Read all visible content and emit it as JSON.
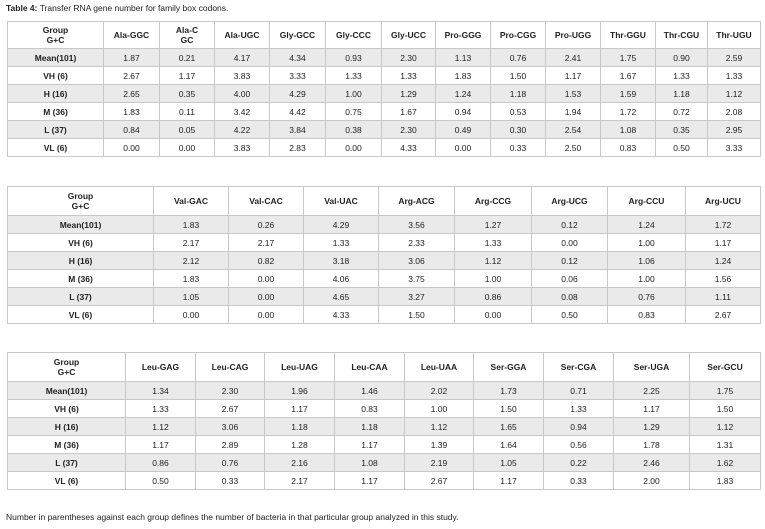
{
  "caption": {
    "label": "Table 4:",
    "text": "Transfer RNA gene number for family box codons."
  },
  "footnote": "Number in parentheses against each group defines the number of bacteria in that particular group analyzed in this study.",
  "table1": {
    "group_header": [
      "Group",
      "G+C"
    ],
    "columns": [
      "Ala-GGC",
      "Ala-CGC",
      "Ala-UGC",
      "Gly-GCC",
      "Gly-CCC",
      "Gly-UCC",
      "Pro-GGG",
      "Pro-CGG",
      "Pro-UGG",
      "Thr-GGU",
      "Thr-CGU",
      "Thr-UGU"
    ],
    "rows": [
      {
        "label": "Mean(101)",
        "values": [
          "1.87",
          "0.21",
          "4.17",
          "4.34",
          "0.93",
          "2.30",
          "1.13",
          "0.76",
          "2.41",
          "1.75",
          "0.90",
          "2.59"
        ]
      },
      {
        "label": "VH (6)",
        "values": [
          "2.67",
          "1.17",
          "3.83",
          "3.33",
          "1.33",
          "1.33",
          "1.83",
          "1.50",
          "1.17",
          "1.67",
          "1.33",
          "1.33"
        ]
      },
      {
        "label": "H (16)",
        "values": [
          "2.65",
          "0.35",
          "4.00",
          "4.29",
          "1.00",
          "1.29",
          "1.24",
          "1.18",
          "1.53",
          "1.59",
          "1.18",
          "1.12"
        ]
      },
      {
        "label": "M (36)",
        "values": [
          "1.83",
          "0.11",
          "3.42",
          "4.42",
          "0.75",
          "1.67",
          "0.94",
          "0.53",
          "1.94",
          "1.72",
          "0.72",
          "2.08"
        ]
      },
      {
        "label": "L (37)",
        "values": [
          "0.84",
          "0.05",
          "4.22",
          "3.84",
          "0.38",
          "2.30",
          "0.49",
          "0.30",
          "2.54",
          "1.08",
          "0.35",
          "2.95"
        ]
      },
      {
        "label": "VL (6)",
        "values": [
          "0.00",
          "0.00",
          "3.83",
          "2.83",
          "0.00",
          "4.33",
          "0.00",
          "0.33",
          "2.50",
          "0.83",
          "0.50",
          "3.33"
        ]
      }
    ]
  },
  "table2": {
    "group_header": [
      "Group",
      "G+C"
    ],
    "columns": [
      "Val-GAC",
      "Val-CAC",
      "Val-UAC",
      "Arg-ACG",
      "Arg-CCG",
      "Arg-UCG",
      "Arg-CCU",
      "Arg-UCU"
    ],
    "rows": [
      {
        "label": "Mean(101)",
        "values": [
          "1.83",
          "0.26",
          "4.29",
          "3.56",
          "1.27",
          "0.12",
          "1.24",
          "1.72"
        ]
      },
      {
        "label": "VH (6)",
        "values": [
          "2.17",
          "2.17",
          "1.33",
          "2.33",
          "1.33",
          "0.00",
          "1.00",
          "1.17"
        ]
      },
      {
        "label": "H (16)",
        "values": [
          "2.12",
          "0.82",
          "3.18",
          "3.06",
          "1.12",
          "0.12",
          "1.06",
          "1.24"
        ]
      },
      {
        "label": "M (36)",
        "values": [
          "1.83",
          "0.00",
          "4.06",
          "3.75",
          "1.00",
          "0.06",
          "1.00",
          "1.56"
        ]
      },
      {
        "label": "L (37)",
        "values": [
          "1.05",
          "0.00",
          "4.65",
          "3.27",
          "0.86",
          "0.08",
          "0.76",
          "1.11"
        ]
      },
      {
        "label": "VL (6)",
        "values": [
          "0.00",
          "0.00",
          "4.33",
          "1.50",
          "0.00",
          "0.50",
          "0.83",
          "2.67"
        ]
      }
    ]
  },
  "table3": {
    "group_header": [
      "Group",
      "G+C"
    ],
    "columns": [
      "Leu-GAG",
      "Leu-CAG",
      "Leu-UAG",
      "Leu-CAA",
      "Leu-UAA",
      "Ser-GGA",
      "Ser-CGA",
      "Ser-UGA",
      "Ser-GCU"
    ],
    "rows": [
      {
        "label": "Mean(101)",
        "values": [
          "1.34",
          "2.30",
          "1.96",
          "1.46",
          "2.02",
          "1.73",
          "0.71",
          "2.25",
          "1.75"
        ]
      },
      {
        "label": "VH (6)",
        "values": [
          "1.33",
          "2.67",
          "1.17",
          "0.83",
          "1.00",
          "1.50",
          "1.33",
          "1.17",
          "1.50"
        ]
      },
      {
        "label": "H (16)",
        "values": [
          "1.12",
          "3.06",
          "1.18",
          "1.18",
          "1.12",
          "1.65",
          "0.94",
          "1.29",
          "1.12"
        ]
      },
      {
        "label": "M (36)",
        "values": [
          "1.17",
          "2.89",
          "1.28",
          "1.17",
          "1.39",
          "1.64",
          "0.56",
          "1.78",
          "1.31"
        ]
      },
      {
        "label": "L (37)",
        "values": [
          "0.86",
          "0.76",
          "2.16",
          "1.08",
          "2.19",
          "1.05",
          "0.22",
          "2.46",
          "1.62"
        ]
      },
      {
        "label": "VL (6)",
        "values": [
          "0.50",
          "0.33",
          "2.17",
          "1.17",
          "2.67",
          "1.17",
          "0.33",
          "2.00",
          "1.83"
        ]
      }
    ]
  }
}
